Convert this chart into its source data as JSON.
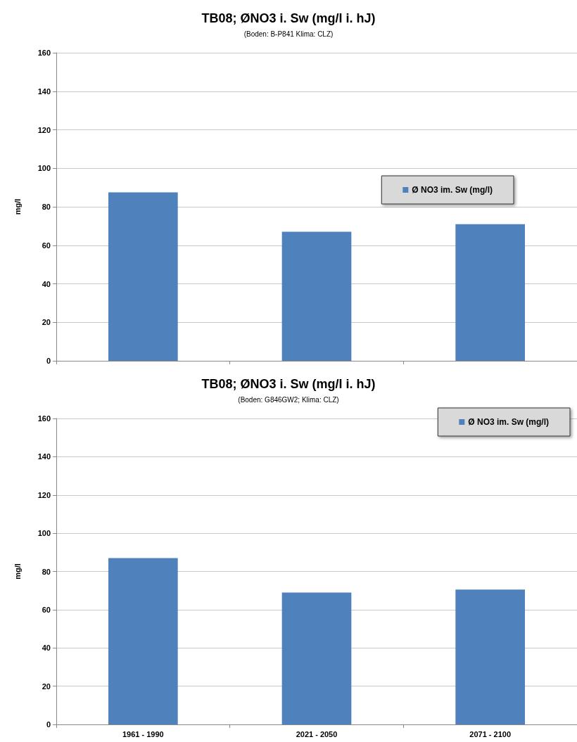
{
  "chart_data": [
    {
      "type": "bar",
      "title": "TB08; ØNO3 i. Sw (mg/l i. hJ)",
      "subtitle": "(Boden: B-P841 Klima: CLZ)",
      "ylabel": "mg/l",
      "categories": [
        null,
        null,
        null
      ],
      "tick_labels": "y",
      "series": [
        {
          "name": "Ø NO3 im. Sw (mg/l)",
          "color": "#4f81bd",
          "values": [
            87.5,
            67,
            71
          ]
        }
      ],
      "ylim": [
        0,
        160
      ],
      "yticks": [
        0,
        20,
        40,
        60,
        80,
        100,
        120,
        140,
        160
      ],
      "grid": "y",
      "legend": "right"
    },
    {
      "type": "bar",
      "title": "TB08; ØNO3 i. Sw (mg/l i. hJ)",
      "subtitle": "(Boden: G846GW2; Klima: CLZ)",
      "ylabel": "mg/l",
      "categories": [
        "1961 - 1990",
        "2021 - 2050",
        "2071 - 2100"
      ],
      "series": [
        {
          "name": "Ø NO3 im. Sw (mg/l)",
          "color": "#4f81bd",
          "values": [
            87,
            69,
            70.5
          ]
        }
      ],
      "ylim": [
        0,
        160
      ],
      "yticks": [
        0,
        20,
        40,
        60,
        80,
        100,
        120,
        140,
        160
      ],
      "grid": "y",
      "legend": "top right"
    }
  ]
}
